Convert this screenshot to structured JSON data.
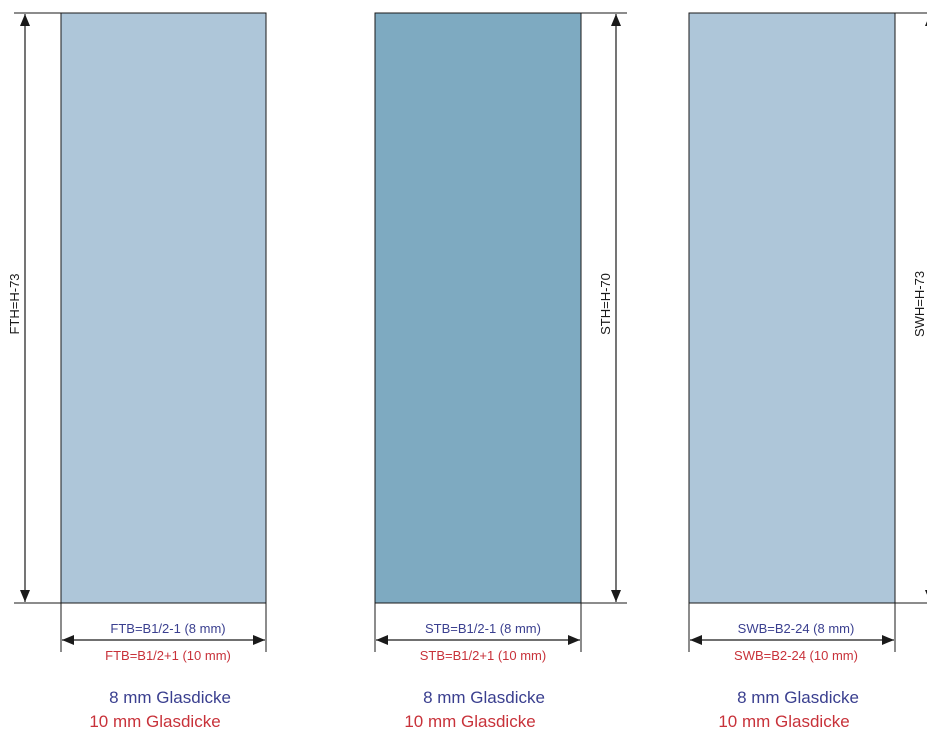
{
  "colors": {
    "glass_light": "#aec6d9",
    "glass_dark": "#7eaac1",
    "label_8mm": "#3a3f8f",
    "label_10mm": "#c8323a",
    "line": "#1a1a1a"
  },
  "panels": [
    {
      "height_label": "FTH=H-73",
      "width_label_8mm": "FTB=B1/2-1 (8 mm)",
      "width_label_10mm": "FTB=B1/2+1 (10 mm)",
      "caption_8mm": "8 mm Glasdicke",
      "caption_10mm": "10 mm Glasdicke"
    },
    {
      "height_label": "STH=H-70",
      "width_label_8mm": "STB=B1/2-1 (8 mm)",
      "width_label_10mm": "STB=B1/2+1 (10 mm)",
      "caption_8mm": "8 mm Glasdicke",
      "caption_10mm": "10 mm Glasdicke"
    },
    {
      "height_label": "SWH=H-73",
      "width_label_8mm": "SWB=B2-24 (8 mm)",
      "width_label_10mm": "SWB=B2-24 (10 mm)",
      "caption_8mm": "8 mm Glasdicke",
      "caption_10mm": "10 mm Glasdicke"
    }
  ]
}
